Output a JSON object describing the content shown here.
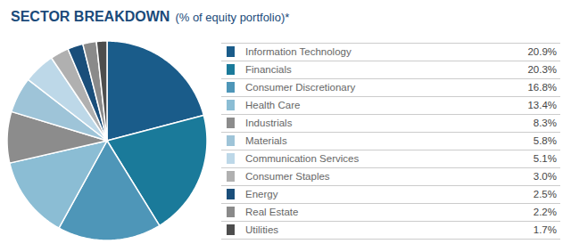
{
  "chart_data": {
    "type": "pie",
    "title": "SECTOR BREAKDOWN",
    "subtitle": "(% of equity portfolio)*",
    "categories": [
      "Information Technology",
      "Financials",
      "Consumer Discretionary",
      "Health Care",
      "Industrials",
      "Materials",
      "Communication Services",
      "Consumer Staples",
      "Energy",
      "Real Estate",
      "Utilities"
    ],
    "values": [
      20.9,
      20.3,
      16.8,
      13.4,
      8.3,
      5.8,
      5.1,
      3.0,
      2.5,
      2.2,
      1.7
    ],
    "value_labels": [
      "20.9%",
      "20.3%",
      "16.8%",
      "13.4%",
      "8.3%",
      "5.8%",
      "5.1%",
      "3.0%",
      "2.5%",
      "2.2%",
      "1.7%"
    ],
    "colors": [
      "#1a5c8a",
      "#1a7a9a",
      "#4e96b8",
      "#8bbdd4",
      "#8c8c8c",
      "#9ec4d8",
      "#bdd8e8",
      "#b0b0b0",
      "#1a4e7a",
      "#8a8a8a",
      "#4d4d4d"
    ],
    "legend": "right"
  }
}
